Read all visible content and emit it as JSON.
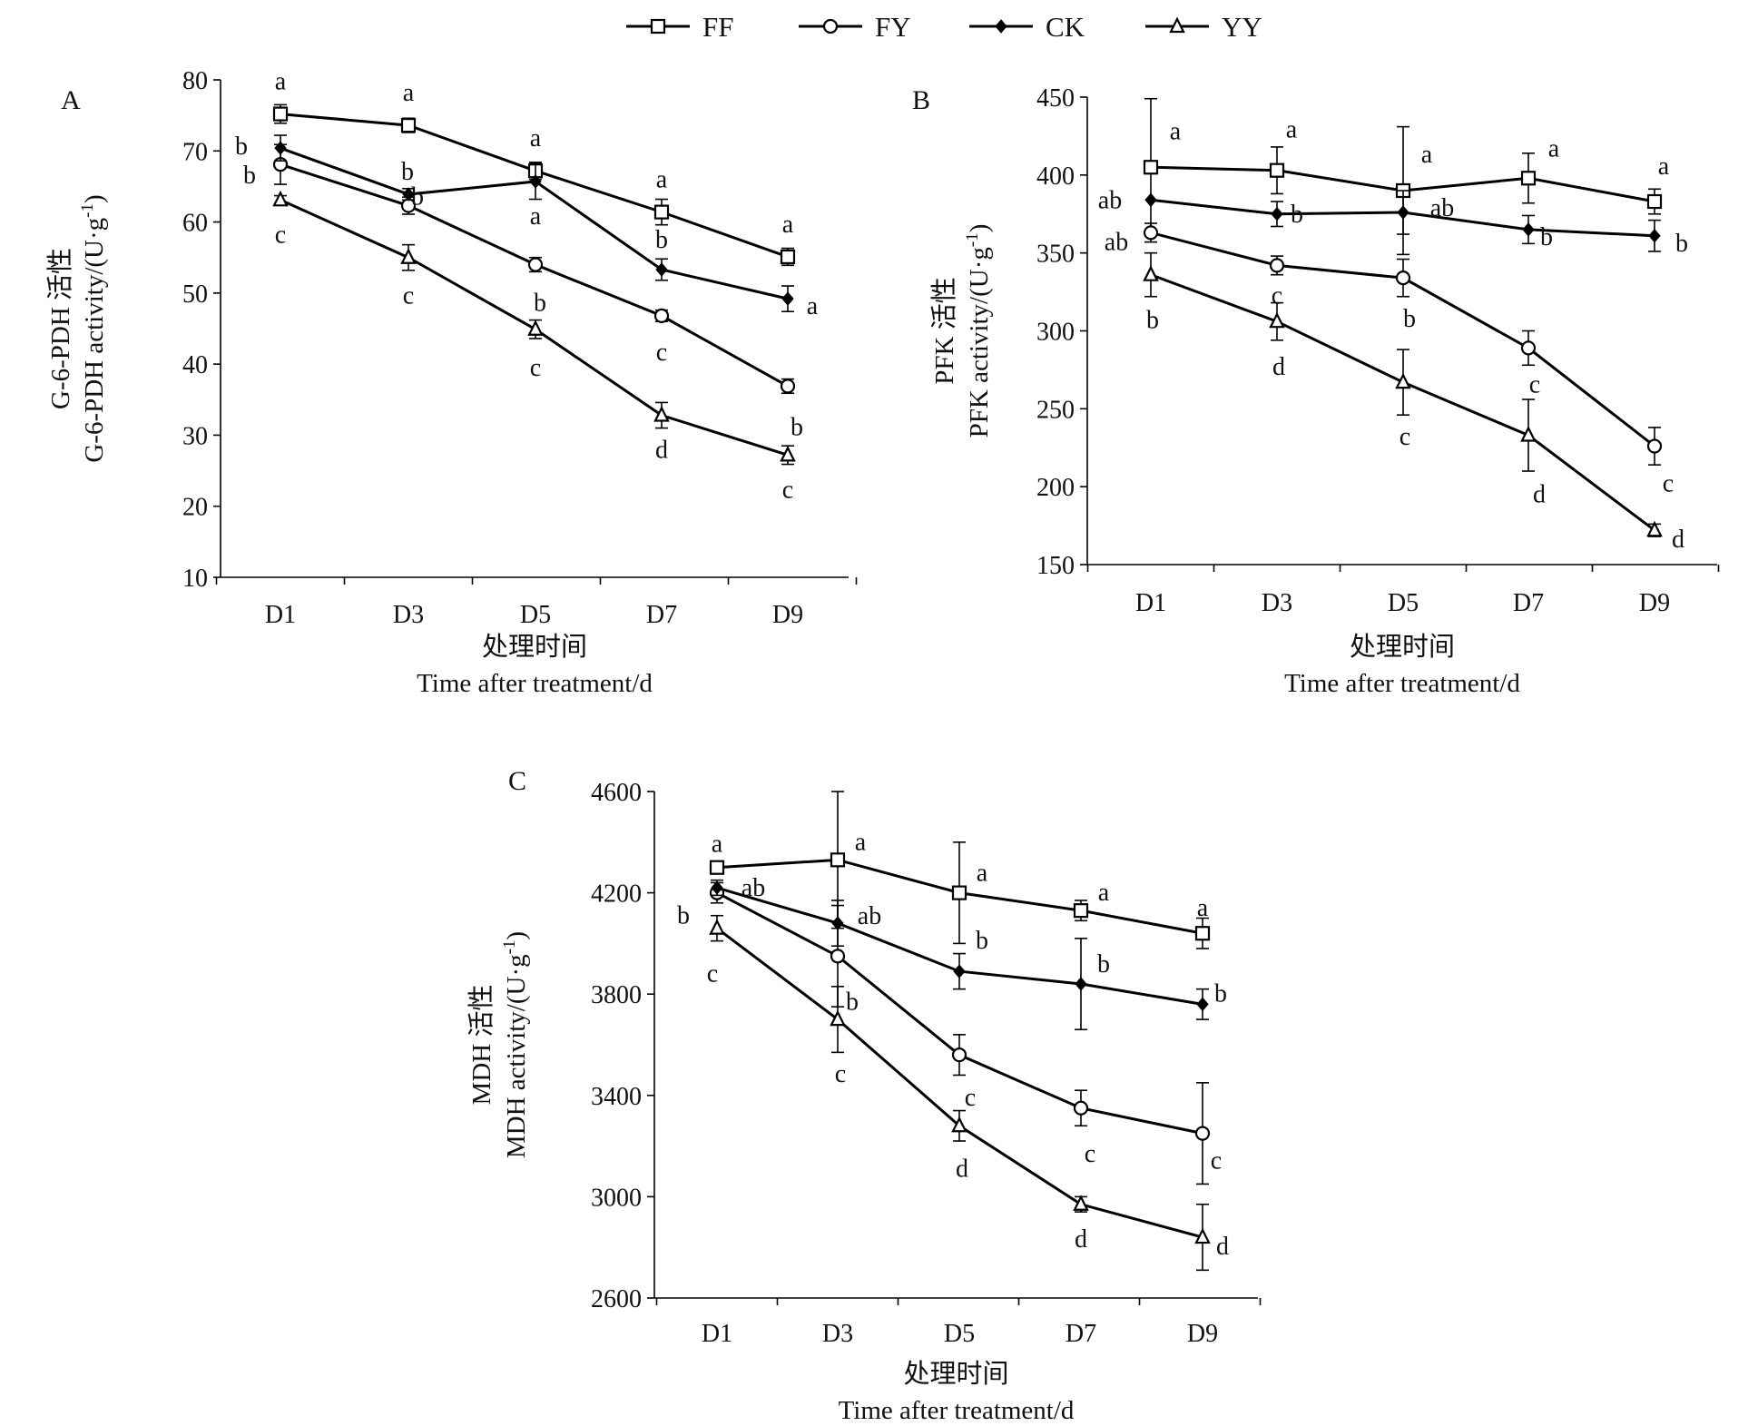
{
  "legend": [
    {
      "name": "FF",
      "marker": "square"
    },
    {
      "name": "FY",
      "marker": "circle"
    },
    {
      "name": "CK",
      "marker": "diamond"
    },
    {
      "name": "YY",
      "marker": "triangle"
    }
  ],
  "chart_data": [
    {
      "type": "line",
      "panel": "A",
      "categories": [
        "D1",
        "D3",
        "D5",
        "D7",
        "D9"
      ],
      "ylabel_cn": "G-6-PDH 活性",
      "ylabel_en": "G-6-PDH activity/(U·g",
      "ylabel_sup": "-1",
      "ylabel_close": ")",
      "xlabel_cn": "处理时间",
      "xlabel_en": "Time after treatment/d",
      "ylim": [
        10,
        80
      ],
      "yticks": [
        10,
        20,
        30,
        40,
        50,
        60,
        70,
        80
      ],
      "series": [
        {
          "name": "FF",
          "values": [
            75.2,
            73.6,
            67.2,
            61.4,
            55.1
          ],
          "errors": [
            1.3,
            1.0,
            1.2,
            1.8,
            1.2
          ],
          "letters": [
            "a",
            "a",
            "a",
            "a",
            "a"
          ]
        },
        {
          "name": "FY",
          "values": [
            68.1,
            62.3,
            54.0,
            46.8,
            36.9
          ],
          "errors": [
            2.8,
            1.2,
            1.0,
            0.8,
            1.0
          ],
          "letters": [
            "b",
            "b",
            "b",
            "c",
            "b"
          ]
        },
        {
          "name": "CK",
          "values": [
            70.4,
            63.9,
            65.7,
            53.3,
            49.2
          ],
          "errors": [
            1.8,
            0.8,
            2.5,
            1.5,
            1.8
          ],
          "letters": [
            "b",
            "b",
            "a",
            "b",
            "a"
          ]
        },
        {
          "name": "YY",
          "values": [
            63.1,
            55.0,
            44.9,
            32.8,
            27.2
          ],
          "errors": [
            0.6,
            1.8,
            1.3,
            1.8,
            1.3
          ],
          "letters": [
            "c",
            "c",
            "c",
            "d",
            "c"
          ]
        }
      ]
    },
    {
      "type": "line",
      "panel": "B",
      "categories": [
        "D1",
        "D3",
        "D5",
        "D7",
        "D9"
      ],
      "ylabel_cn": "PFK 活性",
      "ylabel_en": "PFK activity/(U·g",
      "ylabel_sup": "-1",
      "ylabel_close": ")",
      "xlabel_cn": "处理时间",
      "xlabel_en": "Time after treatment/d",
      "ylim": [
        150,
        450
      ],
      "yticks": [
        150,
        200,
        250,
        300,
        350,
        400,
        450
      ],
      "series": [
        {
          "name": "FF",
          "values": [
            405,
            403,
            390,
            398,
            383
          ],
          "errors": [
            44,
            15,
            41,
            16,
            8
          ],
          "letters": [
            "a",
            "a",
            "a",
            "a",
            "a"
          ]
        },
        {
          "name": "FY",
          "values": [
            363,
            342,
            334,
            289,
            226
          ],
          "errors": [
            6,
            6,
            12,
            11,
            12
          ],
          "letters": [
            "ab",
            "c",
            "b",
            "c",
            "c"
          ]
        },
        {
          "name": "CK",
          "values": [
            384,
            375,
            376,
            365,
            361
          ],
          "errors": [
            0,
            8,
            14,
            9,
            10
          ],
          "letters": [
            "ab",
            "b",
            "ab",
            "b",
            "b"
          ]
        },
        {
          "name": "YY",
          "values": [
            336,
            306,
            267,
            233,
            172
          ],
          "errors": [
            14,
            12,
            21,
            23,
            4
          ],
          "letters": [
            "b",
            "d",
            "c",
            "d",
            "d"
          ]
        }
      ]
    },
    {
      "type": "line",
      "panel": "C",
      "categories": [
        "D1",
        "D3",
        "D5",
        "D7",
        "D9"
      ],
      "ylabel_cn": "MDH 活性",
      "ylabel_en": "MDH activity/(U·g",
      "ylabel_sup": "-1",
      "ylabel_close": ")",
      "xlabel_cn": "处理时间",
      "xlabel_en": "Time after treatment/d",
      "ylim": [
        2600,
        4600
      ],
      "yticks": [
        2600,
        3000,
        3400,
        3800,
        4200,
        4600
      ],
      "series": [
        {
          "name": "FF",
          "values": [
            4300,
            4330,
            4200,
            4130,
            4040
          ],
          "errors": [
            20,
            270,
            200,
            40,
            60
          ],
          "letters": [
            "a",
            "a",
            "a",
            "a",
            "a"
          ]
        },
        {
          "name": "FY",
          "values": [
            4200,
            3950,
            3560,
            3350,
            3250
          ],
          "errors": [
            40,
            200,
            80,
            70,
            200
          ],
          "letters": [
            "b",
            "b",
            "c",
            "c",
            "c"
          ]
        },
        {
          "name": "CK",
          "values": [
            4220,
            4080,
            3890,
            3840,
            3760
          ],
          "errors": [
            30,
            90,
            70,
            180,
            60
          ],
          "letters": [
            "ab",
            "ab",
            "b",
            "b",
            "b"
          ]
        },
        {
          "name": "YY",
          "values": [
            4060,
            3700,
            3280,
            2970,
            2840
          ],
          "errors": [
            50,
            130,
            60,
            30,
            130
          ],
          "letters": [
            "c",
            "c",
            "d",
            "d",
            "d"
          ]
        }
      ]
    }
  ]
}
